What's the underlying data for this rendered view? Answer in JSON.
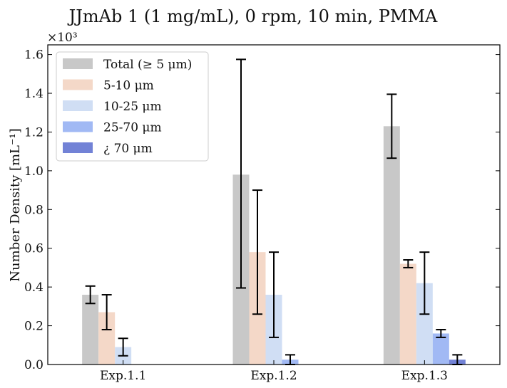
{
  "chart_data": {
    "type": "bar",
    "title": "JJmAb 1 (1 mg/mL), 0 rpm, 10 min, PMMA",
    "ylabel": "Number Density [mL⁻¹]",
    "xlabel": "",
    "y_multiplier_label": "×10³",
    "ylim": [
      0,
      1.65
    ],
    "yticks": [
      "0.0",
      "0.2",
      "0.4",
      "0.6",
      "0.8",
      "1.0",
      "1.2",
      "1.4",
      "1.6"
    ],
    "grid": false,
    "legend_position": "top-left",
    "categories": [
      "Exp.1.1",
      "Exp.1.2",
      "Exp.1.3"
    ],
    "series": [
      {
        "name": "Total (≥ 5 μm)",
        "color": "#c8c8c8",
        "values": [
          0.36,
          0.98,
          1.23
        ],
        "err_low": [
          0.045,
          0.585,
          0.165
        ],
        "err_high": [
          0.045,
          0.595,
          0.165
        ]
      },
      {
        "name": "5-10 μm",
        "color": "#f4d8c8",
        "values": [
          0.27,
          0.58,
          0.52
        ],
        "err_low": [
          0.09,
          0.32,
          0.02
        ],
        "err_high": [
          0.09,
          0.32,
          0.02
        ]
      },
      {
        "name": "10-25 μm",
        "color": "#d0def4",
        "values": [
          0.09,
          0.36,
          0.42
        ],
        "err_low": [
          0.045,
          0.22,
          0.16
        ],
        "err_high": [
          0.045,
          0.22,
          0.16
        ]
      },
      {
        "name": "25-70 μm",
        "color": "#a1b9f4",
        "values": [
          0.0,
          0.025,
          0.16
        ],
        "err_low": [
          0,
          0.025,
          0.02
        ],
        "err_high": [
          0,
          0.025,
          0.02
        ]
      },
      {
        "name": "¿ 70 μm",
        "color": "#7282d6",
        "values": [
          0.0,
          0.0,
          0.025
        ],
        "err_low": [
          0,
          0,
          0.025
        ],
        "err_high": [
          0,
          0,
          0.025
        ]
      }
    ]
  }
}
